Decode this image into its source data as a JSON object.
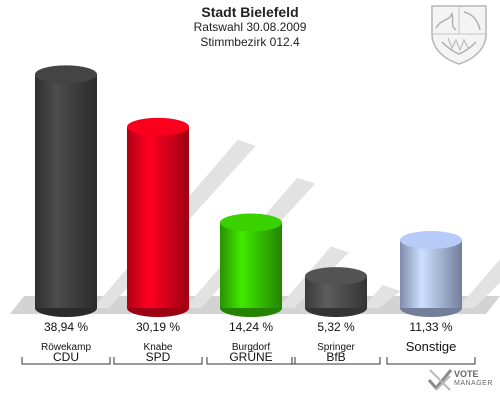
{
  "header": {
    "title": "Stadt Bielefeld",
    "subtitle_line1": "Ratswahl 30.08.2009",
    "subtitle_line2": "Stimmbezirk 012.4"
  },
  "branding": {
    "crest_icon": "nrw-coat-of-arms-icon",
    "badge_icon": "vote-manager-check-icon",
    "badge_line1": "VOTE",
    "badge_line2": "MANAGER"
  },
  "chart_data": {
    "type": "bar",
    "categories": [
      "CDU",
      "SPD",
      "GRÜNE",
      "BfB",
      "Sonstige"
    ],
    "candidates": [
      "Röwekamp",
      "Knabe",
      "Burgdorf",
      "Springer",
      ""
    ],
    "values": [
      38.94,
      30.19,
      14.24,
      5.32,
      11.33
    ],
    "value_labels": [
      "38,94 %",
      "30,19 %",
      "14,24 %",
      "5,32 %",
      "11,33 %"
    ],
    "colors": [
      "#3d3d3d",
      "#e0001a",
      "#33bb00",
      "#4a4a4a",
      "#a4b4dd"
    ],
    "ylim": [
      0,
      40
    ],
    "grid": false,
    "legend": "none"
  }
}
